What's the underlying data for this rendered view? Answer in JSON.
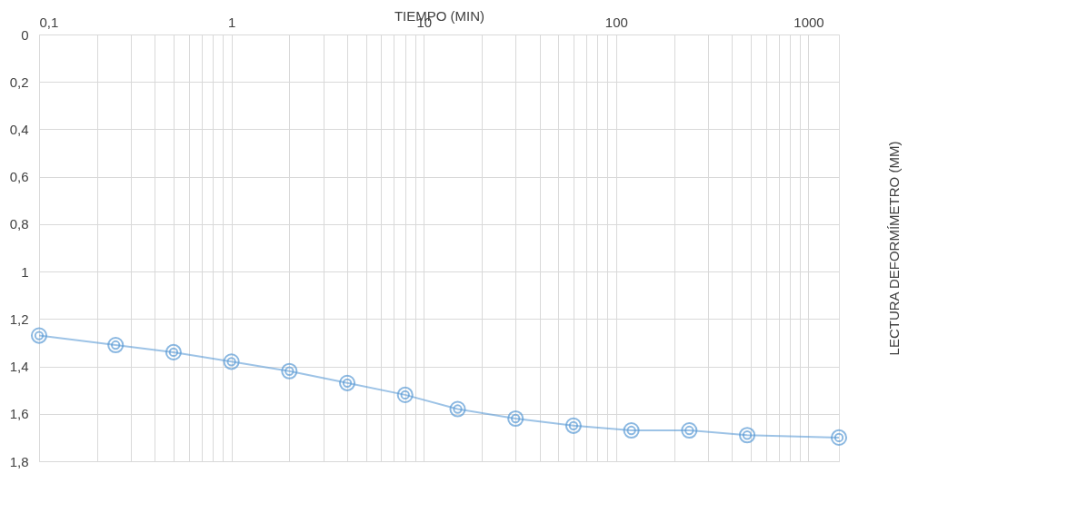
{
  "chart_data": {
    "type": "line",
    "xlabel": "TIEMPO (MIN)",
    "ylabel": "LECTURA DEFORMÍMETRO (MM)",
    "x": [
      0.1,
      0.25,
      0.5,
      1,
      2,
      4,
      8,
      15,
      30,
      60,
      120,
      240,
      480,
      1440
    ],
    "series": [
      {
        "color": "#5b9bd5",
        "values": [
          1.27,
          1.31,
          1.34,
          1.38,
          1.42,
          1.47,
          1.52,
          1.58,
          1.62,
          1.65,
          1.67,
          1.67,
          1.69,
          1.7
        ]
      }
    ],
    "log": "x",
    "xlim": [
      0.1,
      1440
    ],
    "ylim": [
      1.8,
      0
    ],
    "xticks": [
      {
        "value": 0.1,
        "label": "0,1"
      },
      {
        "value": 0.2,
        "label": null
      },
      {
        "value": 0.3,
        "label": null
      },
      {
        "value": 0.4,
        "label": null
      },
      {
        "value": 0.5,
        "label": null
      },
      {
        "value": 0.6,
        "label": null
      },
      {
        "value": 0.7,
        "label": null
      },
      {
        "value": 0.8,
        "label": null
      },
      {
        "value": 0.9,
        "label": null
      },
      1,
      {
        "value": 2,
        "label": null
      },
      {
        "value": 3,
        "label": null
      },
      {
        "value": 4,
        "label": null
      },
      {
        "value": 5,
        "label": null
      },
      {
        "value": 6,
        "label": null
      },
      {
        "value": 7,
        "label": null
      },
      {
        "value": 8,
        "label": null
      },
      {
        "value": 9,
        "label": null
      },
      10,
      {
        "value": 20,
        "label": null
      },
      {
        "value": 30,
        "label": null
      },
      {
        "value": 40,
        "label": null
      },
      {
        "value": 50,
        "label": null
      },
      {
        "value": 60,
        "label": null
      },
      {
        "value": 70,
        "label": null
      },
      {
        "value": 80,
        "label": null
      },
      {
        "value": 90,
        "label": null
      },
      100,
      {
        "value": 200,
        "label": null
      },
      {
        "value": 300,
        "label": null
      },
      {
        "value": 400,
        "label": null
      },
      {
        "value": 500,
        "label": null
      },
      {
        "value": 600,
        "label": null
      },
      {
        "value": 700,
        "label": null
      },
      {
        "value": 800,
        "label": null
      },
      {
        "value": 900,
        "label": null
      },
      1000
    ],
    "yticks": [
      0,
      {
        "value": 0.2,
        "label": "0,2"
      },
      {
        "value": 0.4,
        "label": "0,4"
      },
      {
        "value": 0.6,
        "label": "0,6"
      },
      {
        "value": 0.8,
        "label": "0,8"
      },
      1,
      {
        "value": 1.2,
        "label": "1,2"
      },
      {
        "value": 1.4,
        "label": "1,4"
      },
      {
        "value": 1.6,
        "label": "1,6"
      },
      {
        "value": 1.8,
        "label": "1,8"
      }
    ],
    "grid": true,
    "marker": "circle",
    "line_style": "solid"
  }
}
